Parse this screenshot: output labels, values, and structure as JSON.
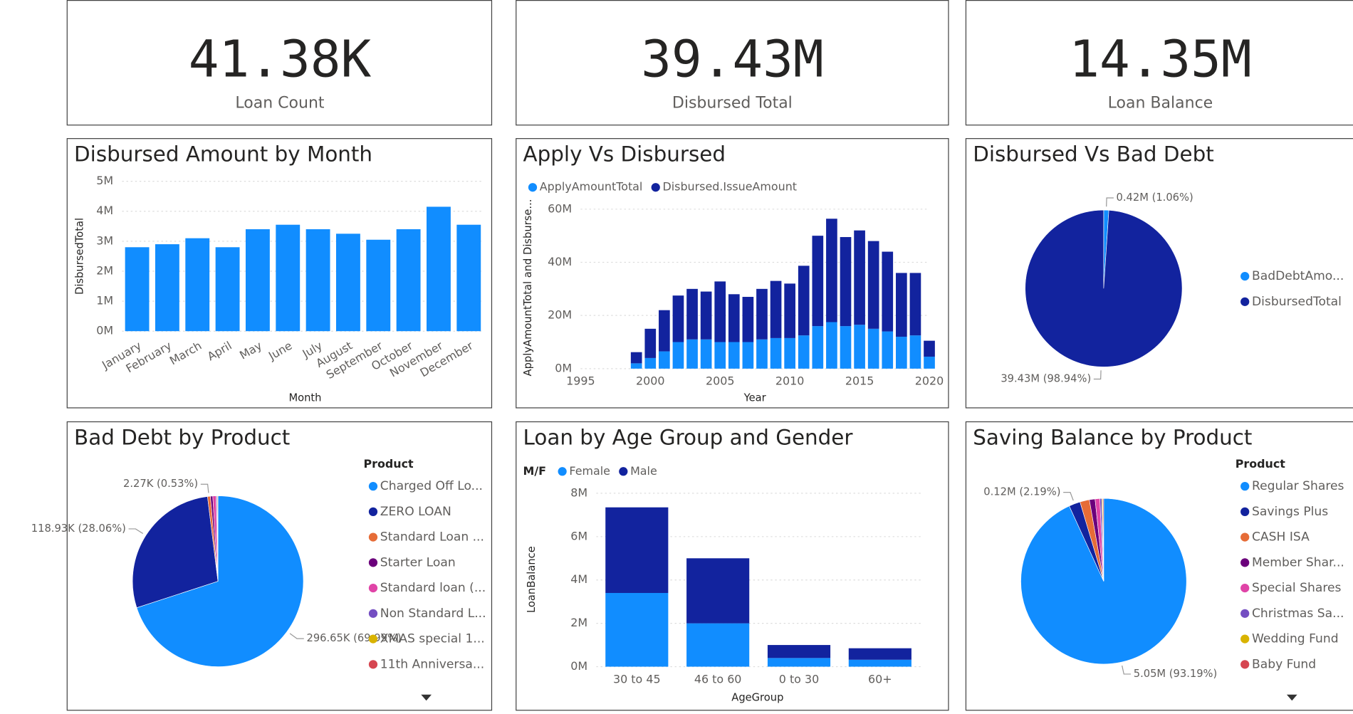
{
  "kpis": [
    {
      "value": "41.38K",
      "label": "Loan Count"
    },
    {
      "value": "39.43M",
      "label": "Disbursed Total"
    },
    {
      "value": "14.35M",
      "label": "Loan Balance"
    }
  ],
  "chart_data": [
    {
      "type": "bar",
      "title": "Disbursed Amount by Month",
      "categories": [
        "January",
        "February",
        "March",
        "April",
        "May",
        "June",
        "July",
        "August",
        "September",
        "October",
        "November",
        "December"
      ],
      "series": [
        {
          "name": null,
          "color": "#118DFF",
          "values": [
            2800000,
            2900000,
            3100000,
            2800000,
            3400000,
            3550000,
            3400000,
            3250000,
            3050000,
            3400000,
            4150000,
            3550000
          ]
        }
      ],
      "ylim": [
        0,
        5000000
      ],
      "yticks": [
        {
          "value": 0,
          "label": "0M"
        },
        {
          "value": 1000000,
          "label": "1M"
        },
        {
          "value": 2000000,
          "label": "2M"
        },
        {
          "value": 3000000,
          "label": "3M"
        },
        {
          "value": 4000000,
          "label": "4M"
        },
        {
          "value": 5000000,
          "label": "5M"
        }
      ],
      "xlabel": "Month",
      "ylabel": "DisbursedTotal",
      "grid": true
    },
    {
      "type": "stacked_bar_x",
      "title": "Apply Vs Disbursed",
      "x": [
        1999,
        2000,
        2001,
        2002,
        2003,
        2004,
        2005,
        2006,
        2007,
        2008,
        2009,
        2010,
        2011,
        2012,
        2013,
        2014,
        2015,
        2016,
        2017,
        2018,
        2019,
        2020
      ],
      "series": [
        {
          "name": "ApplyAmountTotal",
          "color": "#118DFF",
          "values": [
            2000000,
            4000000,
            6500000,
            10000000,
            11000000,
            11000000,
            10000000,
            10000000,
            10000000,
            11000000,
            11500000,
            11500000,
            12500000,
            16000000,
            17500000,
            16000000,
            16500000,
            15000000,
            14000000,
            12000000,
            12500000,
            4500000
          ]
        },
        {
          "name": "Disbursed.IssueAmount",
          "color": "#12239E",
          "values": [
            4200000,
            11000000,
            15500000,
            17500000,
            19000000,
            18000000,
            22800000,
            18000000,
            17000000,
            19000000,
            21500000,
            20500000,
            26200000,
            34000000,
            38900000,
            33500000,
            35500000,
            33000000,
            30000000,
            24000000,
            23500000,
            6000000
          ]
        }
      ],
      "xlim": [
        1995,
        2020
      ],
      "xticks": [
        1995,
        2000,
        2005,
        2010,
        2015,
        2020
      ],
      "ylim": [
        0,
        60000000
      ],
      "yticks": [
        {
          "value": 0,
          "label": "0M"
        },
        {
          "value": 20000000,
          "label": "20M"
        },
        {
          "value": 40000000,
          "label": "40M"
        },
        {
          "value": 60000000,
          "label": "60M"
        }
      ],
      "xlabel": "Year",
      "ylabel": "ApplyAmountTotal and Disburse...",
      "grid": true,
      "legend": "top-left"
    },
    {
      "type": "pie",
      "title": "Disbursed Vs Bad Debt",
      "categories": [
        "BadDebtAmo...",
        "DisbursedTotal"
      ],
      "values": [
        420000,
        39430000
      ],
      "value_labels": [
        "0.42M (1.06%)",
        "39.43M (98.94%)"
      ],
      "colors": [
        "#118DFF",
        "#12239E"
      ],
      "legend": "right"
    },
    {
      "type": "pie",
      "title": "Bad Debt by Product",
      "legend_title": "Product",
      "categories": [
        "Charged Off Lo...",
        "ZERO LOAN",
        "Standard Loan ...",
        "Starter Loan",
        "Standard loan (...",
        "Non Standard L...",
        "XMAS special 1...",
        "11th Anniversa..."
      ],
      "values": [
        296650,
        118930,
        2270,
        1900,
        2600,
        800,
        500,
        200
      ],
      "value_labels": [
        "296.65K (69.99%)",
        "118.93K (28.06%)",
        "2.27K (0.53%)",
        null,
        null,
        null,
        null,
        null
      ],
      "colors": [
        "#118DFF",
        "#12239E",
        "#E66C37",
        "#6B007B",
        "#E044A7",
        "#744EC2",
        "#D9B300",
        "#D64550"
      ],
      "legend": "right"
    },
    {
      "type": "stacked_bar",
      "title": "Loan by Age Group and Gender",
      "legend_title": "M/F",
      "categories": [
        "30 to 45",
        "46 to 60",
        "0 to 30",
        "60+"
      ],
      "series": [
        {
          "name": "Female",
          "color": "#118DFF",
          "values": [
            3400000,
            2000000,
            400000,
            320000
          ]
        },
        {
          "name": "Male",
          "color": "#12239E",
          "values": [
            3950000,
            3000000,
            600000,
            530000
          ]
        }
      ],
      "ylim": [
        0,
        8000000
      ],
      "yticks": [
        {
          "value": 0,
          "label": "0M"
        },
        {
          "value": 2000000,
          "label": "2M"
        },
        {
          "value": 4000000,
          "label": "4M"
        },
        {
          "value": 6000000,
          "label": "6M"
        },
        {
          "value": 8000000,
          "label": "8M"
        }
      ],
      "xlabel": "AgeGroup",
      "ylabel": "LoanBalance",
      "grid": true,
      "legend": "top-left"
    },
    {
      "type": "pie",
      "title": "Saving Balance by Product",
      "legend_title": "Product",
      "categories": [
        "Regular Shares",
        "Savings Plus",
        "CASH ISA",
        "Member Shar...",
        "Special Shares",
        "Christmas Sa...",
        "Wedding Fund",
        "Baby Fund"
      ],
      "values": [
        5050000,
        120000,
        100000,
        60000,
        50000,
        20000,
        10000,
        10000
      ],
      "value_labels": [
        "5.05M (93.19%)",
        "0.12M (2.19%)",
        null,
        null,
        null,
        null,
        null,
        null
      ],
      "colors": [
        "#118DFF",
        "#12239E",
        "#E66C37",
        "#6B007B",
        "#E044A7",
        "#744EC2",
        "#D9B300",
        "#D64550"
      ],
      "legend": "right"
    }
  ]
}
